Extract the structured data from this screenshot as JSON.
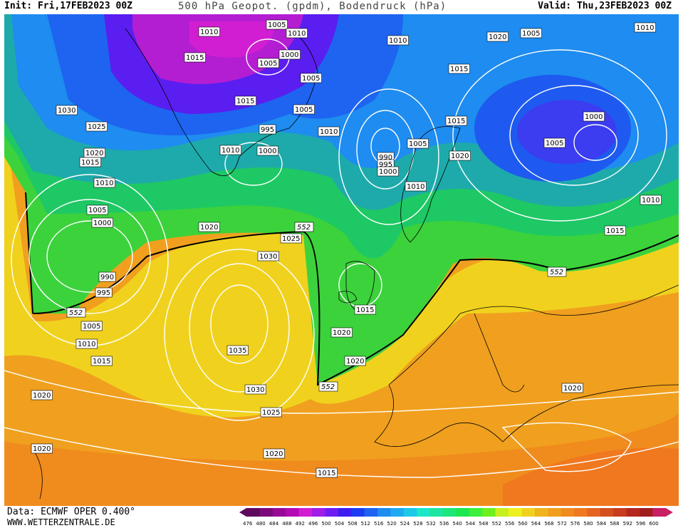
{
  "header": {
    "init": "Init: Fri,17FEB2023 00Z",
    "title": "500 hPa Geopot. (gpdm), Bodendruck (hPa)",
    "valid": "Valid: Thu,23FEB2023 00Z"
  },
  "footer": {
    "data": "Data: ECMWF OPER 0.400°",
    "website": "WWW.WETTERZENTRALE.DE"
  },
  "legend": {
    "values": [
      "476",
      "480",
      "484",
      "488",
      "492",
      "496",
      "500",
      "504",
      "508",
      "512",
      "516",
      "520",
      "524",
      "528",
      "532",
      "536",
      "540",
      "544",
      "548",
      "552",
      "556",
      "560",
      "564",
      "568",
      "572",
      "576",
      "580",
      "584",
      "588",
      "592",
      "596",
      "600"
    ],
    "colors": [
      "#5e0a5e",
      "#7a0a7a",
      "#960a96",
      "#b40ab4",
      "#d21ed2",
      "#a01ee6",
      "#6e1ef0",
      "#3c1ef0",
      "#1e3cf0",
      "#1e64f0",
      "#1e8cf0",
      "#1eaaf0",
      "#1ec8e6",
      "#1ee6c8",
      "#1ee6a0",
      "#1ee678",
      "#1ee650",
      "#3cf03c",
      "#6ef01e",
      "#c8f01e",
      "#f0f01e",
      "#f0d21e",
      "#f0b41e",
      "#f0a01e",
      "#f08c1e",
      "#f0781e",
      "#e6641e",
      "#d2501e",
      "#c83c1e",
      "#b4281e",
      "#a01e1e",
      "#c81e64"
    ]
  },
  "isobars": [
    "1005",
    "1010",
    "1010",
    "1005",
    "1000",
    "1005",
    "1015",
    "1030",
    "1025",
    "1020",
    "1015",
    "1010",
    "1005",
    "1000",
    "990",
    "995",
    "1005",
    "1010",
    "1015",
    "1020",
    "1025",
    "1030",
    "1035",
    "1030",
    "1025",
    "1020",
    "1020",
    "1020",
    "1015",
    "1010",
    "1015",
    "1000",
    "995",
    "1005",
    "1010",
    "990",
    "995",
    "1000",
    "1005",
    "1010",
    "1015",
    "1020",
    "1015",
    "1020",
    "1010",
    "1005",
    "1000",
    "1005",
    "1010",
    "1010",
    "1015",
    "1020",
    "1020",
    "1020",
    "1015"
  ],
  "geopotential_label": "552"
}
